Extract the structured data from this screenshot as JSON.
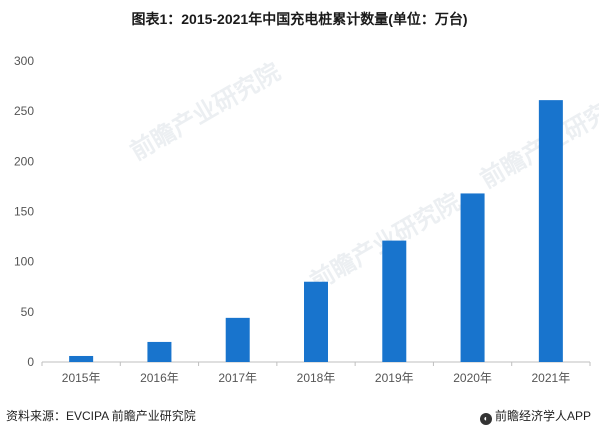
{
  "title": "图表1：2015-2021年中国充电桩累计数量(单位：万台)",
  "chart_data": {
    "type": "bar",
    "categories": [
      "2015年",
      "2016年",
      "2017年",
      "2018年",
      "2019年",
      "2020年",
      "2021年"
    ],
    "values": [
      6,
      20,
      44,
      80,
      121,
      168,
      261
    ],
    "ylim": [
      0,
      300
    ],
    "yticks": [
      0,
      50,
      100,
      150,
      200,
      250,
      300
    ],
    "bar_color": "#1874cd",
    "grid": false
  },
  "watermark": "前瞻产业研究院",
  "footer": {
    "source": "资料来源：EVCIPA 前瞻产业研究院",
    "brand": "前瞻经济学人APP",
    "brand_icon": "qianzhan-logo-icon"
  }
}
